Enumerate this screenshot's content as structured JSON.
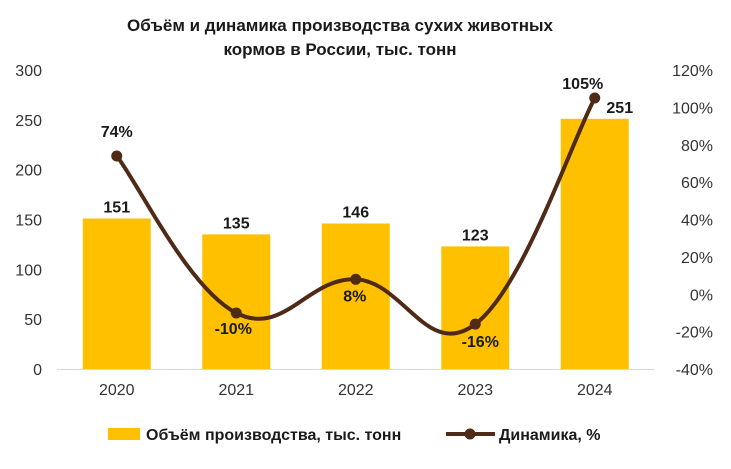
{
  "chart_data": {
    "type": "bar",
    "title_lines": [
      "Объём и динамика производства сухих животных",
      "кормов в России, тыс. тонн"
    ],
    "categories": [
      "2020",
      "2021",
      "2022",
      "2023",
      "2024"
    ],
    "series": [
      {
        "name": "Объём производства, тыс. тонн",
        "type": "bar",
        "axis": "left",
        "values": [
          151,
          135,
          146,
          123,
          251
        ],
        "labels": [
          "151",
          "135",
          "146",
          "123",
          "251"
        ],
        "color": "#FFC000"
      },
      {
        "name": "Динамика, %",
        "type": "line",
        "axis": "right",
        "values": [
          74,
          -10,
          8,
          -16,
          105
        ],
        "labels": [
          "74%",
          "-10%",
          "8%",
          "-16%",
          "105%"
        ],
        "color": "#4E2A17"
      }
    ],
    "y_left": {
      "min": 0,
      "max": 300,
      "ticks": [
        "0",
        "50",
        "100",
        "150",
        "200",
        "250",
        "300"
      ]
    },
    "y_right": {
      "min": -40,
      "max": 120,
      "ticks": [
        "-40%",
        "-20%",
        "0%",
        "20%",
        "40%",
        "60%",
        "80%",
        "100%",
        "120%"
      ]
    },
    "legend_position": "bottom",
    "grid": false
  }
}
